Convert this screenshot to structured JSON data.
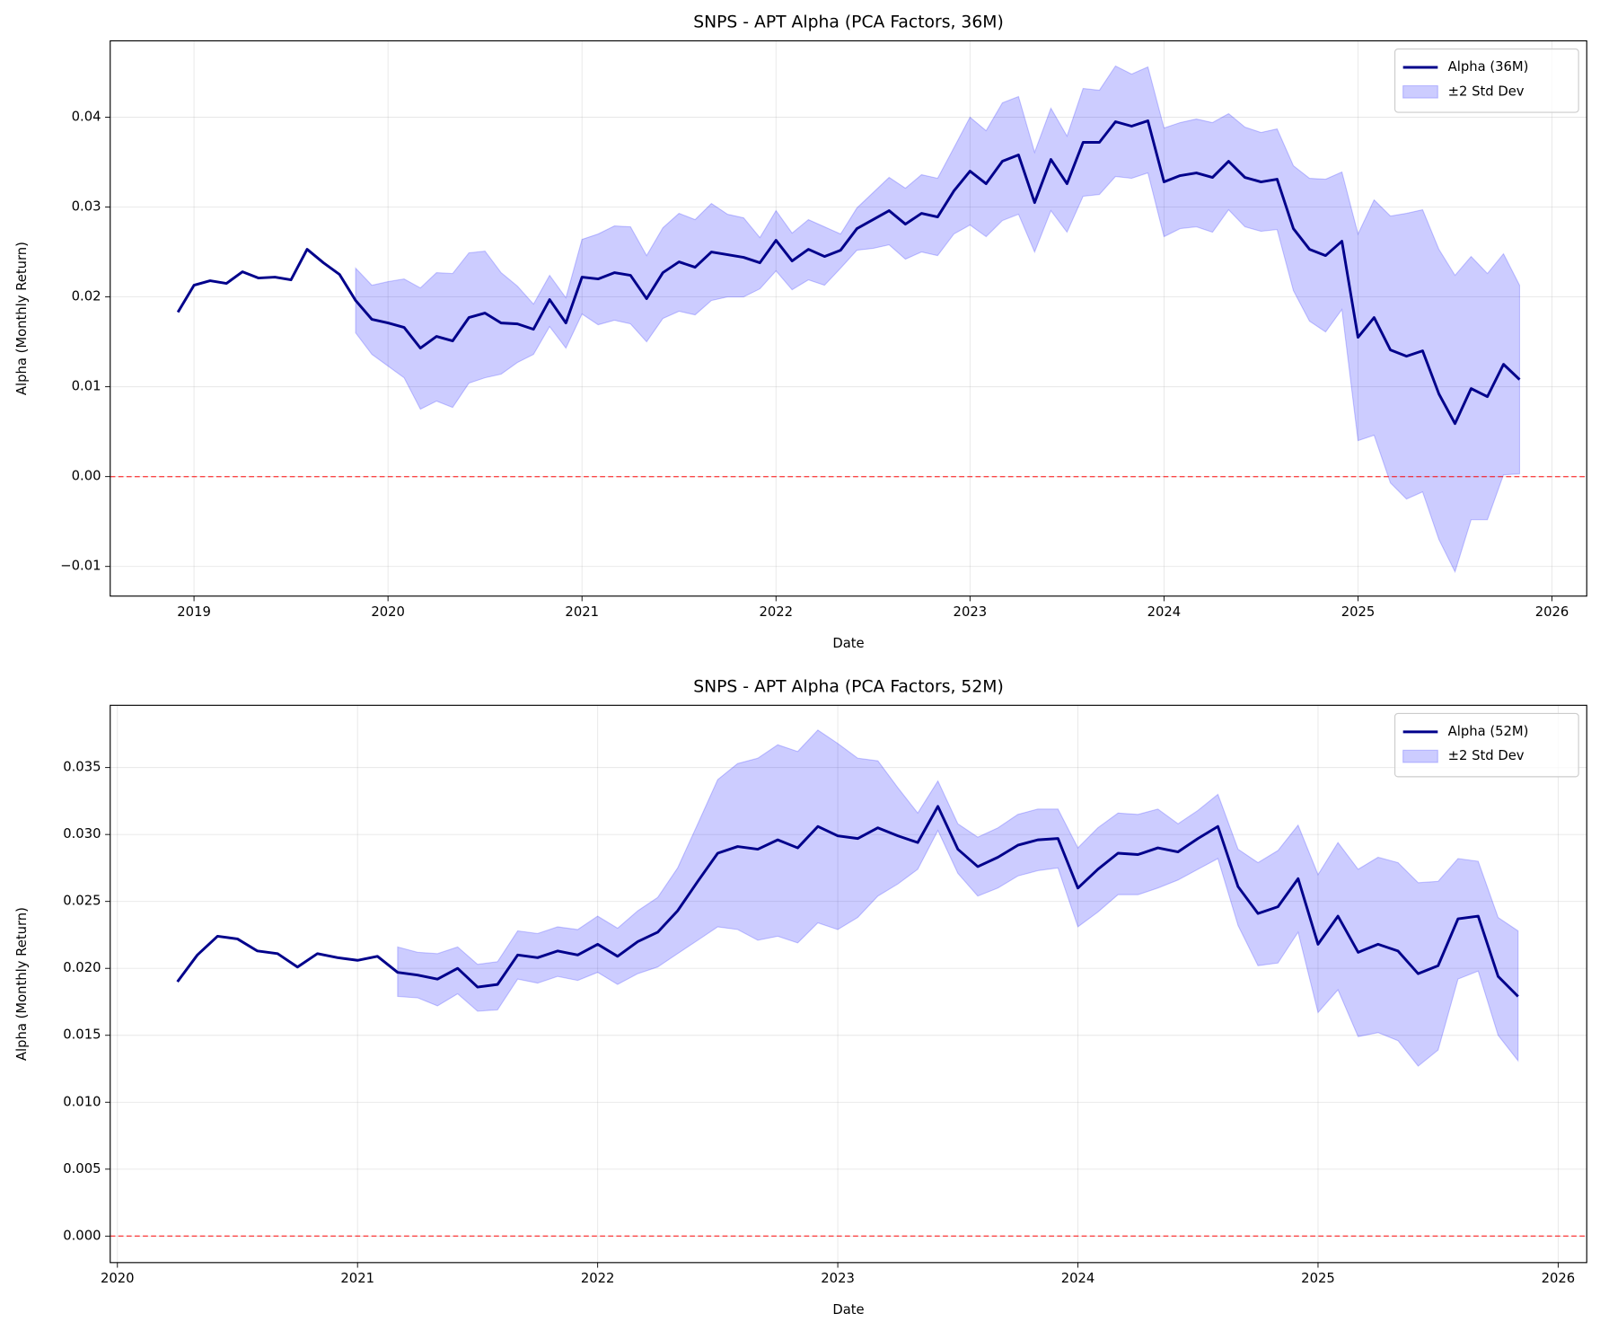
{
  "chart_data": [
    {
      "type": "line",
      "title": "SNPS - APT Alpha (PCA Factors, 36M)",
      "x_label": "Date",
      "y_label": "Alpha (Monthly Return)",
      "x": [
        2018.917,
        2019.0,
        2019.083,
        2019.167,
        2019.25,
        2019.333,
        2019.417,
        2019.5,
        2019.583,
        2019.667,
        2019.75,
        2019.833,
        2019.917,
        2020.0,
        2020.083,
        2020.167,
        2020.25,
        2020.333,
        2020.417,
        2020.5,
        2020.583,
        2020.667,
        2020.75,
        2020.833,
        2020.917,
        2021.0,
        2021.083,
        2021.167,
        2021.25,
        2021.333,
        2021.417,
        2021.5,
        2021.583,
        2021.667,
        2021.75,
        2021.833,
        2021.917,
        2022.0,
        2022.083,
        2022.167,
        2022.25,
        2022.333,
        2022.417,
        2022.5,
        2022.583,
        2022.667,
        2022.75,
        2022.833,
        2022.917,
        2023.0,
        2023.083,
        2023.167,
        2023.25,
        2023.333,
        2023.417,
        2023.5,
        2023.583,
        2023.667,
        2023.75,
        2023.833,
        2023.917,
        2024.0,
        2024.083,
        2024.167,
        2024.25,
        2024.333,
        2024.417,
        2024.5,
        2024.583,
        2024.667,
        2024.75,
        2024.833,
        2024.917,
        2025.0,
        2025.083,
        2025.167,
        2025.25,
        2025.333,
        2025.417,
        2025.5,
        2025.583,
        2025.667,
        2025.75,
        2025.833
      ],
      "series": [
        {
          "name": "Alpha (36M)",
          "color": "#00008b",
          "values": [
            0.0183,
            0.0213,
            0.0218,
            0.0215,
            0.0228,
            0.0221,
            0.0222,
            0.0219,
            0.0253,
            0.0238,
            0.0225,
            0.0196,
            0.0175,
            0.0171,
            0.0166,
            0.0143,
            0.0156,
            0.0151,
            0.0177,
            0.0182,
            0.0171,
            0.017,
            0.0164,
            0.0197,
            0.0171,
            0.0222,
            0.022,
            0.0227,
            0.0224,
            0.0198,
            0.0227,
            0.0239,
            0.0233,
            0.025,
            0.0247,
            0.0244,
            0.0238,
            0.0263,
            0.024,
            0.0253,
            0.0245,
            0.0252,
            0.0276,
            0.0286,
            0.0296,
            0.0281,
            0.0293,
            0.0289,
            0.0318,
            0.034,
            0.0326,
            0.0351,
            0.0358,
            0.0305,
            0.0353,
            0.0326,
            0.0372,
            0.0372,
            0.0395,
            0.039,
            0.0396,
            0.0328,
            0.0335,
            0.0338,
            0.0333,
            0.0351,
            0.0333,
            0.0328,
            0.0331,
            0.0276,
            0.0253,
            0.0246,
            0.0262,
            0.0155,
            0.0177,
            0.0141,
            0.0134,
            0.014,
            0.0092,
            0.0059,
            0.0098,
            0.0089,
            0.0125,
            0.0108
          ]
        },
        {
          "name": "±2 Std Dev",
          "color": "#0000ff",
          "upper": [
            null,
            null,
            null,
            null,
            null,
            null,
            null,
            null,
            null,
            null,
            null,
            0.0232,
            0.0213,
            0.0217,
            0.022,
            0.021,
            0.0227,
            0.0226,
            0.0249,
            0.0251,
            0.0227,
            0.0212,
            0.0192,
            0.0224,
            0.0199,
            0.0264,
            0.027,
            0.0279,
            0.0278,
            0.0246,
            0.0277,
            0.0293,
            0.0286,
            0.0304,
            0.0292,
            0.0288,
            0.0266,
            0.0296,
            0.0271,
            0.0286,
            0.0278,
            0.027,
            0.0299,
            0.0316,
            0.0333,
            0.0321,
            0.0336,
            0.0332,
            0.0366,
            0.04,
            0.0385,
            0.0416,
            0.0423,
            0.0361,
            0.041,
            0.0379,
            0.0432,
            0.043,
            0.0457,
            0.0448,
            0.0456,
            0.0388,
            0.0394,
            0.0398,
            0.0394,
            0.0404,
            0.0389,
            0.0383,
            0.0387,
            0.0346,
            0.0332,
            0.0331,
            0.0339,
            0.027,
            0.0308,
            0.029,
            0.0293,
            0.0297,
            0.0253,
            0.0224,
            0.0245,
            0.0226,
            0.0248,
            0.0213
          ],
          "lower": [
            null,
            null,
            null,
            null,
            null,
            null,
            null,
            null,
            null,
            null,
            null,
            0.016,
            0.0136,
            0.0123,
            0.011,
            0.0075,
            0.0084,
            0.0077,
            0.0104,
            0.011,
            0.0114,
            0.0127,
            0.0136,
            0.0167,
            0.0143,
            0.0181,
            0.0169,
            0.0174,
            0.017,
            0.015,
            0.0176,
            0.0184,
            0.018,
            0.0196,
            0.02,
            0.02,
            0.0209,
            0.0229,
            0.0208,
            0.0219,
            0.0213,
            0.0232,
            0.0252,
            0.0254,
            0.0258,
            0.0242,
            0.025,
            0.0246,
            0.027,
            0.028,
            0.0267,
            0.0285,
            0.0292,
            0.025,
            0.0296,
            0.0272,
            0.0312,
            0.0314,
            0.0334,
            0.0332,
            0.0338,
            0.0267,
            0.0276,
            0.0278,
            0.0272,
            0.0297,
            0.0278,
            0.0273,
            0.0275,
            0.0207,
            0.0173,
            0.0161,
            0.0186,
            0.004,
            0.0046,
            -0.0007,
            -0.0025,
            -0.0017,
            -0.007,
            -0.0106,
            -0.0048,
            -0.0048,
            0.0002,
            0.0003
          ]
        }
      ],
      "reference_line": {
        "value": 0,
        "color": "#ff0000"
      },
      "xlim": [
        2018.568,
        2026.179
      ],
      "xticks": [
        2019,
        2020,
        2021,
        2022,
        2023,
        2024,
        2025,
        2026
      ],
      "ylim": [
        -0.0133,
        0.0485
      ],
      "yticks": [
        {
          "value": -0.01,
          "label": "−0.01"
        },
        {
          "value": 0,
          "label": "0.00"
        },
        0.01,
        0.02,
        0.03,
        0.04
      ],
      "grid": true,
      "legend": "upper right"
    },
    {
      "type": "line",
      "title": "SNPS - APT Alpha (PCA Factors, 52M)",
      "x_label": "Date",
      "y_label": "Alpha (Monthly Return)",
      "x": [
        2020.25,
        2020.333,
        2020.417,
        2020.5,
        2020.583,
        2020.667,
        2020.75,
        2020.833,
        2020.917,
        2021.0,
        2021.083,
        2021.167,
        2021.25,
        2021.333,
        2021.417,
        2021.5,
        2021.583,
        2021.667,
        2021.75,
        2021.833,
        2021.917,
        2022.0,
        2022.083,
        2022.167,
        2022.25,
        2022.333,
        2022.417,
        2022.5,
        2022.583,
        2022.667,
        2022.75,
        2022.833,
        2022.917,
        2023.0,
        2023.083,
        2023.167,
        2023.25,
        2023.333,
        2023.417,
        2023.5,
        2023.583,
        2023.667,
        2023.75,
        2023.833,
        2023.917,
        2024.0,
        2024.083,
        2024.167,
        2024.25,
        2024.333,
        2024.417,
        2024.5,
        2024.583,
        2024.667,
        2024.75,
        2024.833,
        2024.917,
        2025.0,
        2025.083,
        2025.167,
        2025.25,
        2025.333,
        2025.417,
        2025.5,
        2025.583,
        2025.667,
        2025.75,
        2025.833
      ],
      "series": [
        {
          "name": "Alpha (52M)",
          "color": "#00008b",
          "values": [
            0.019,
            0.021,
            0.0224,
            0.0222,
            0.0213,
            0.0211,
            0.0201,
            0.0211,
            0.0208,
            0.0206,
            0.0209,
            0.0197,
            0.0195,
            0.0192,
            0.02,
            0.0186,
            0.0188,
            0.021,
            0.0208,
            0.0213,
            0.021,
            0.0218,
            0.0209,
            0.022,
            0.0227,
            0.0243,
            0.0265,
            0.0286,
            0.0291,
            0.0289,
            0.0296,
            0.029,
            0.0306,
            0.0299,
            0.0297,
            0.0305,
            0.0299,
            0.0294,
            0.0321,
            0.0289,
            0.0276,
            0.0283,
            0.0292,
            0.0296,
            0.0297,
            0.026,
            0.0274,
            0.0286,
            0.0285,
            0.029,
            0.0287,
            0.0297,
            0.0306,
            0.0261,
            0.0241,
            0.0246,
            0.0267,
            0.0218,
            0.0239,
            0.0212,
            0.0218,
            0.0213,
            0.0196,
            0.0202,
            0.0237,
            0.0239,
            0.0194,
            0.0179
          ]
        },
        {
          "name": "±2 Std Dev",
          "color": "#0000ff",
          "upper": [
            null,
            null,
            null,
            null,
            null,
            null,
            null,
            null,
            null,
            null,
            null,
            0.0216,
            0.0212,
            0.0211,
            0.0216,
            0.0203,
            0.0205,
            0.0228,
            0.0226,
            0.0231,
            0.0229,
            0.0239,
            0.023,
            0.0243,
            0.0253,
            0.0275,
            0.0308,
            0.0341,
            0.0353,
            0.0357,
            0.0367,
            0.0362,
            0.0378,
            0.0368,
            0.0357,
            0.0355,
            0.0335,
            0.0316,
            0.034,
            0.0308,
            0.0298,
            0.0305,
            0.0315,
            0.0319,
            0.0319,
            0.029,
            0.0305,
            0.0316,
            0.0315,
            0.0319,
            0.0308,
            0.0318,
            0.033,
            0.0289,
            0.0279,
            0.0288,
            0.0307,
            0.027,
            0.0294,
            0.0274,
            0.0283,
            0.0279,
            0.0264,
            0.0265,
            0.0282,
            0.028,
            0.0238,
            0.0228
          ],
          "lower": [
            null,
            null,
            null,
            null,
            null,
            null,
            null,
            null,
            null,
            null,
            null,
            0.0179,
            0.0178,
            0.0172,
            0.0181,
            0.0168,
            0.0169,
            0.0192,
            0.0189,
            0.0194,
            0.0191,
            0.0197,
            0.0188,
            0.0196,
            0.0201,
            0.0211,
            0.0221,
            0.0231,
            0.0229,
            0.0221,
            0.0224,
            0.0219,
            0.0234,
            0.0229,
            0.0238,
            0.0254,
            0.0263,
            0.0274,
            0.0303,
            0.0271,
            0.0254,
            0.026,
            0.0269,
            0.0273,
            0.0275,
            0.0231,
            0.0242,
            0.0255,
            0.0255,
            0.026,
            0.0266,
            0.0274,
            0.0282,
            0.0232,
            0.0202,
            0.0204,
            0.0227,
            0.0167,
            0.0184,
            0.0149,
            0.0152,
            0.0146,
            0.0127,
            0.0139,
            0.0192,
            0.0198,
            0.015,
            0.0131
          ]
        }
      ],
      "reference_line": {
        "value": 0,
        "color": "#ff0000"
      },
      "xlim": [
        2019.97,
        2026.119
      ],
      "xticks": [
        2020,
        2021,
        2022,
        2023,
        2024,
        2025,
        2026
      ],
      "ylim": [
        -0.00198,
        0.03965
      ],
      "yticks": [
        {
          "value": 0,
          "label": "0.000"
        },
        0.005,
        {
          "value": 0.01,
          "label": "0.010"
        },
        0.015,
        {
          "value": 0.02,
          "label": "0.020"
        },
        0.025,
        {
          "value": 0.03,
          "label": "0.030"
        },
        0.035
      ],
      "grid": true,
      "legend": "upper right"
    }
  ]
}
